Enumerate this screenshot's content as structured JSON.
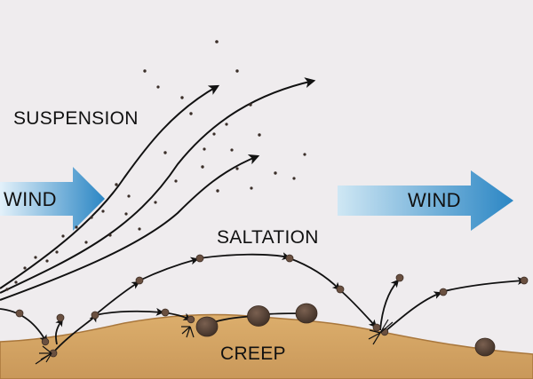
{
  "labels": {
    "suspension": "SUSPENSION",
    "saltation": "SALTATION",
    "creep": "CREEP",
    "wind_left": "WIND",
    "wind_right": "WIND"
  },
  "colors": {
    "background": "#efecee",
    "ground_fill": "#d6a866",
    "ground_edge": "#a9773c",
    "wind_arrow_dark": "#2b86c4",
    "wind_arrow_light": "#c2e0f1",
    "path_stroke": "#111111",
    "grain": "#6a5040",
    "boulder": "#4d3b30",
    "dust": "#3a2e28"
  },
  "icons": {
    "wind_arrow": "wind-arrow-icon",
    "impact": "impact-splash-icon"
  }
}
